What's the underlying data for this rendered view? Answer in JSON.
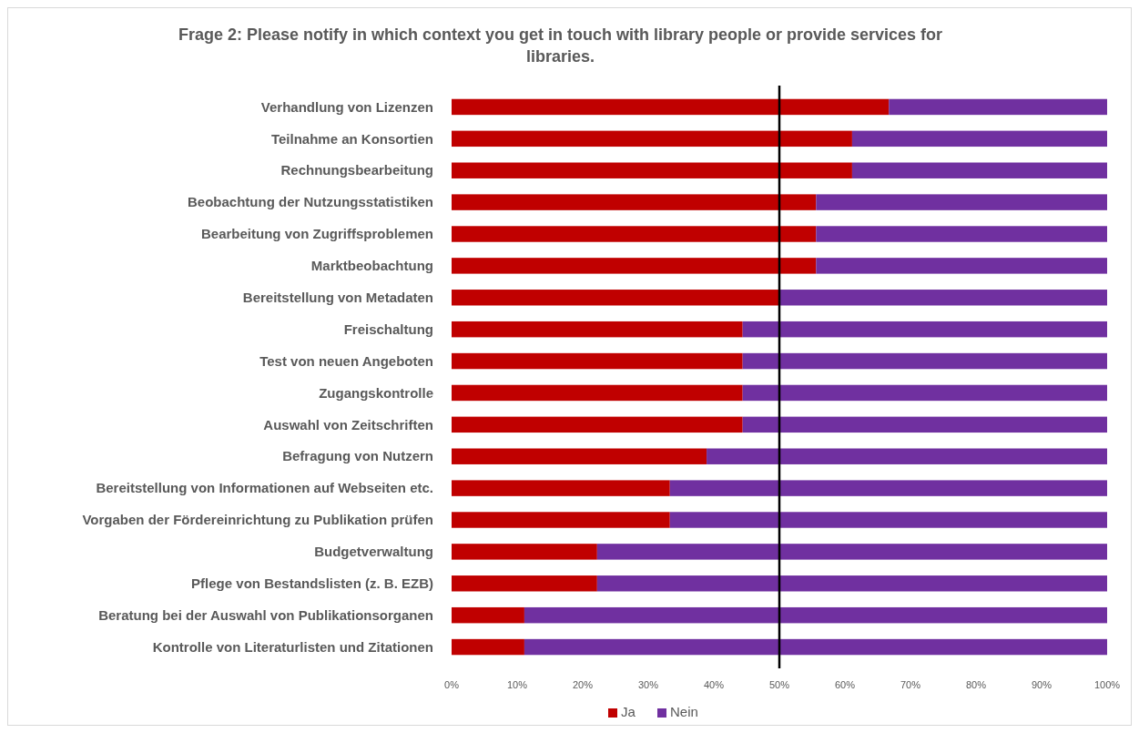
{
  "chart_data": {
    "type": "bar",
    "title": "Frage 2: Please notify in which context you get in touch with library people or provide services for libraries.",
    "orientation": "horizontal",
    "stacked": true,
    "categories": [
      "Verhandlung von Lizenzen",
      "Teilnahme an Konsortien",
      "Rechnungsbearbeitung",
      "Beobachtung der Nutzungsstatistiken",
      "Bearbeitung von Zugriffsproblemen",
      "Marktbeobachtung",
      "Bereitstellung von Metadaten",
      "Freischaltung",
      "Test von neuen Angeboten",
      "Zugangskontrolle",
      "Auswahl von Zeitschriften",
      "Befragung von Nutzern",
      "Bereitstellung von Informationen auf Webseiten etc.",
      "Vorgaben der Fördereinrichtung zu Publikation prüfen",
      "Budgetverwaltung",
      "Pflege von Bestandslisten (z. B. EZB)",
      "Beratung bei der Auswahl von Publikationsorganen",
      "Kontrolle von Literaturlisten und Zitationen"
    ],
    "series": [
      {
        "name": "Ja",
        "color": "#c00000",
        "values": [
          66.7,
          61.1,
          61.1,
          55.6,
          55.6,
          55.6,
          50,
          44.4,
          44.4,
          44.4,
          44.4,
          38.9,
          33.3,
          33.3,
          22.2,
          22.2,
          11.1,
          11.1
        ]
      },
      {
        "name": "Nein",
        "color": "#7030a0",
        "values": [
          33.3,
          38.9,
          38.9,
          44.4,
          44.4,
          44.4,
          50,
          55.6,
          55.6,
          55.6,
          55.6,
          61.1,
          66.7,
          66.7,
          77.8,
          77.8,
          88.9,
          88.9
        ]
      }
    ],
    "xlim": [
      0,
      100
    ],
    "xticks": [
      {
        "value": 0,
        "label": "0%"
      },
      {
        "value": 10,
        "label": "10%"
      },
      {
        "value": 20,
        "label": "20%"
      },
      {
        "value": 30,
        "label": "30%"
      },
      {
        "value": 40,
        "label": "40%"
      },
      {
        "value": 50,
        "label": "50%"
      },
      {
        "value": 60,
        "label": "60%"
      },
      {
        "value": 70,
        "label": "70%"
      },
      {
        "value": 80,
        "label": "80%"
      },
      {
        "value": 90,
        "label": "90%"
      },
      {
        "value": 100,
        "label": "100%"
      }
    ],
    "ref_lines": [
      {
        "axis": "x",
        "value": 50,
        "color": "#000000"
      }
    ],
    "legend": "bottom"
  }
}
